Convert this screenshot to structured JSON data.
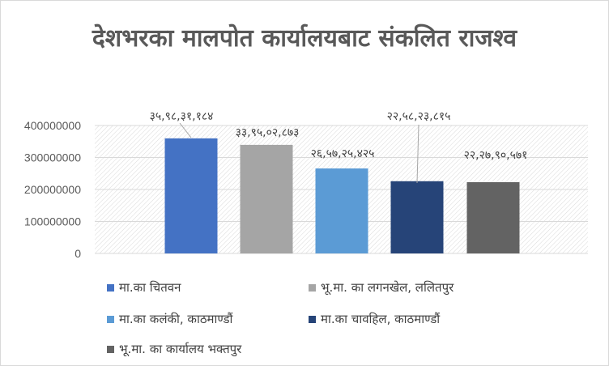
{
  "chart_data": {
    "type": "bar",
    "title": "देशभरका मालपोत कार्यालयबाट संकलित राजश्व",
    "ylim": [
      0,
      400000000
    ],
    "yticks": [
      0,
      100000000,
      200000000,
      300000000,
      400000000
    ],
    "ytick_labels": [
      "0",
      "100000000",
      "200000000",
      "300000000",
      "400000000"
    ],
    "grid": true,
    "legend_position": "bottom",
    "series": [
      {
        "name": "मा.का चितवन",
        "value": 359831184,
        "label": "३५,९८,३१,१८४",
        "color": "#4472c4"
      },
      {
        "name": "भू.मा. का लगनखेल, ललितपुर",
        "value": 339502873,
        "label": "३३,९५,०२,८७३",
        "color": "#a5a5a5"
      },
      {
        "name": "मा.का कलंकी, काठमाण्डौं",
        "value": 265725425,
        "label": "२६,५७,२५,४२५",
        "color": "#5b9bd5"
      },
      {
        "name": "मा.का चावहिल, काठमाण्डौं",
        "value": 225823815,
        "label": "२२,५८,२३,८१५",
        "color": "#264478"
      },
      {
        "name": "भू.मा. का कार्यालय भक्तपुर",
        "value": 222790571,
        "label": "२२,२७,९०,५७१",
        "color": "#636363"
      }
    ]
  }
}
